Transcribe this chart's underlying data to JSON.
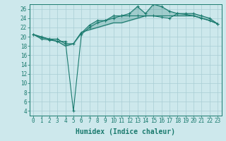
{
  "xlabel": "Humidex (Indice chaleur)",
  "ylabel": "",
  "background_color": "#cde8ec",
  "grid_color": "#a8cdd4",
  "line_color": "#1a7a6e",
  "fill_color": "#1a7a6e",
  "xlim": [
    -0.5,
    23.5
  ],
  "ylim": [
    3,
    27
  ],
  "xticks": [
    0,
    1,
    2,
    3,
    4,
    5,
    6,
    7,
    8,
    9,
    10,
    11,
    12,
    13,
    14,
    15,
    16,
    17,
    18,
    19,
    20,
    21,
    22,
    23
  ],
  "yticks": [
    4,
    6,
    8,
    10,
    12,
    14,
    16,
    18,
    20,
    22,
    24,
    26
  ],
  "x": [
    0,
    1,
    2,
    3,
    4,
    5,
    6,
    7,
    8,
    9,
    10,
    11,
    12,
    13,
    14,
    15,
    16,
    17,
    18,
    19,
    20,
    21,
    22,
    23
  ],
  "line_spike": [
    20.5,
    19.5,
    19.3,
    19.0,
    19.0,
    4.0,
    20.5,
    22.0,
    23.0,
    23.5,
    24.0,
    24.5,
    24.5,
    24.5,
    24.5,
    24.5,
    24.2,
    24.0,
    25.0,
    24.8,
    24.5,
    24.0,
    23.5,
    22.8
  ],
  "line_upper": [
    20.5,
    20.0,
    19.5,
    19.5,
    18.5,
    18.5,
    20.8,
    22.5,
    23.5,
    23.5,
    24.5,
    24.5,
    25.0,
    26.5,
    25.0,
    27.0,
    26.5,
    25.5,
    25.0,
    25.0,
    25.0,
    24.5,
    24.0,
    22.8
  ],
  "line_lower": [
    20.5,
    19.8,
    19.5,
    19.0,
    18.0,
    18.5,
    21.0,
    21.5,
    22.0,
    22.5,
    23.0,
    23.0,
    23.5,
    24.0,
    24.5,
    24.5,
    24.5,
    24.5,
    24.5,
    24.5,
    24.5,
    24.0,
    23.5,
    22.8
  ],
  "tick_fontsize": 5.5,
  "label_fontsize": 7.0,
  "fill_alpha": 0.25
}
